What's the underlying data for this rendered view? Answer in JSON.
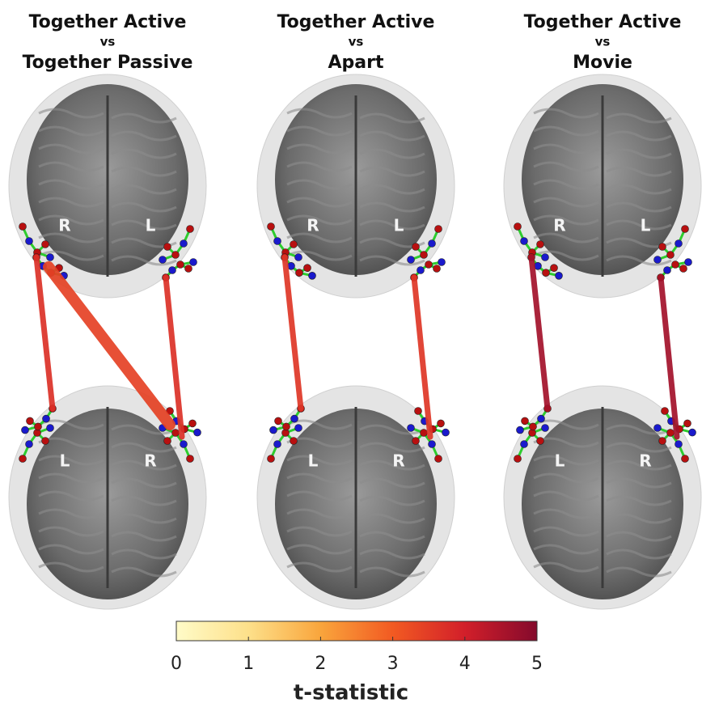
{
  "panels": [
    {
      "title": [
        "Together Active",
        "vs",
        "Together Passive"
      ],
      "top_labels": [
        "R",
        "L"
      ],
      "bottom_labels": [
        "L",
        "R"
      ],
      "connections": [
        3.7,
        3.7,
        3.4
      ]
    },
    {
      "title": [
        "Together Active",
        "vs",
        "Apart"
      ],
      "top_labels": [
        "R",
        "L"
      ],
      "bottom_labels": [
        "L",
        "R"
      ],
      "connections": [
        3.6,
        3.6
      ]
    },
    {
      "title": [
        "Together Active",
        "vs",
        "Movie"
      ],
      "top_labels": [
        "R",
        "L"
      ],
      "bottom_labels": [
        "L",
        "R"
      ],
      "connections": [
        4.6,
        4.6
      ]
    }
  ],
  "colorbar": {
    "label": "t-statistic",
    "lim": [
      0,
      5
    ],
    "ticks": [
      0,
      1,
      2,
      3,
      4,
      5
    ],
    "colormap": [
      "#fffbc8",
      "#fde08a",
      "#f9a53c",
      "#f25a22",
      "#d21f2a",
      "#840a2c"
    ]
  }
}
